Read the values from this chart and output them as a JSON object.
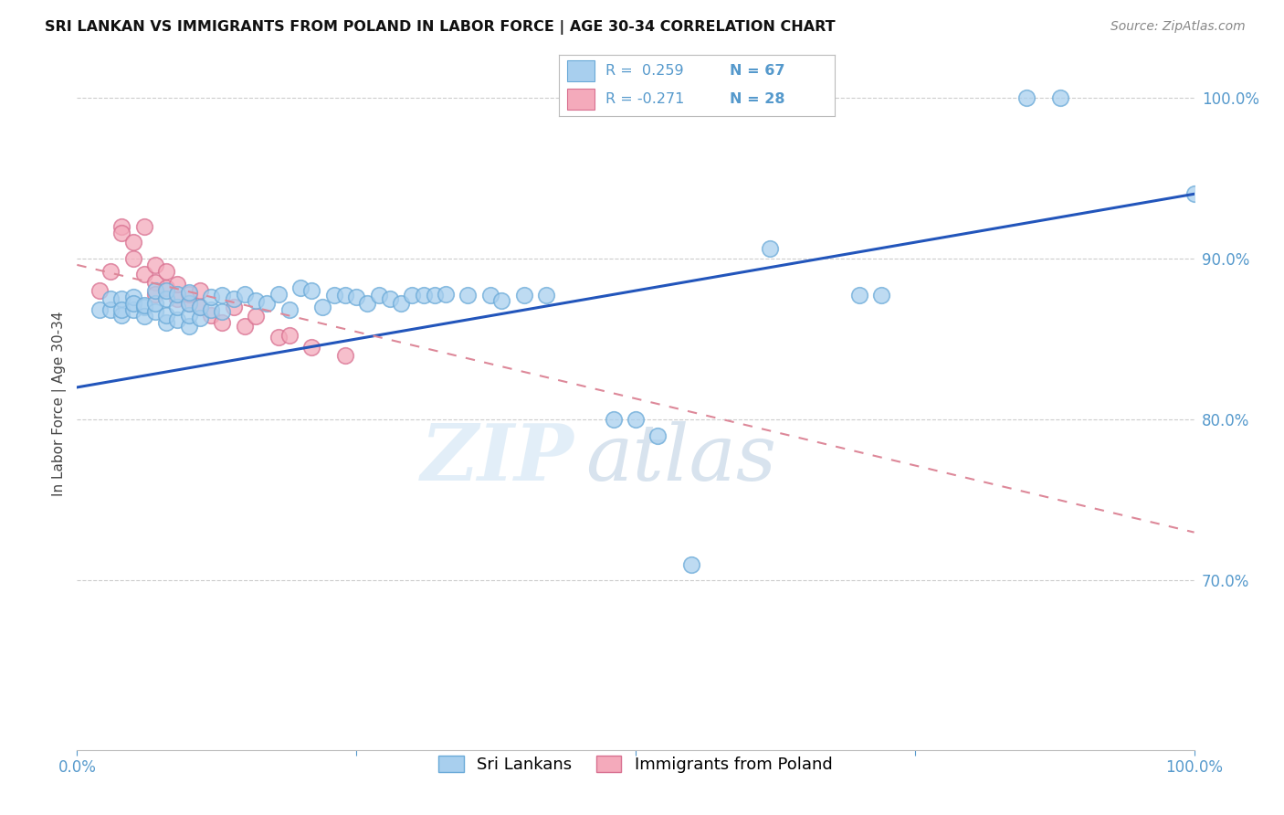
{
  "title": "SRI LANKAN VS IMMIGRANTS FROM POLAND IN LABOR FORCE | AGE 30-34 CORRELATION CHART",
  "source": "Source: ZipAtlas.com",
  "ylabel": "In Labor Force | Age 30-34",
  "watermark_zip": "ZIP",
  "watermark_atlas": "atlas",
  "x_min": 0.0,
  "x_max": 1.0,
  "y_min": 0.595,
  "y_max": 1.025,
  "y_tick_labels_right": [
    "100.0%",
    "90.0%",
    "80.0%",
    "70.0%"
  ],
  "y_tick_positions_right": [
    1.0,
    0.9,
    0.8,
    0.7
  ],
  "color_blue": "#A8CFEE",
  "color_blue_edge": "#6AAAD8",
  "color_pink": "#F4AABB",
  "color_pink_edge": "#D87090",
  "color_line_blue": "#2255BB",
  "color_line_pink": "#DD8899",
  "color_axis": "#5599CC",
  "color_grid": "#CCCCCC",
  "background": "#FFFFFF",
  "sri_x": [
    0.02,
    0.03,
    0.03,
    0.04,
    0.04,
    0.04,
    0.05,
    0.05,
    0.05,
    0.06,
    0.06,
    0.06,
    0.07,
    0.07,
    0.07,
    0.08,
    0.08,
    0.08,
    0.08,
    0.09,
    0.09,
    0.09,
    0.1,
    0.1,
    0.1,
    0.1,
    0.11,
    0.11,
    0.12,
    0.12,
    0.13,
    0.13,
    0.14,
    0.15,
    0.16,
    0.17,
    0.18,
    0.19,
    0.2,
    0.21,
    0.22,
    0.23,
    0.24,
    0.25,
    0.26,
    0.27,
    0.28,
    0.29,
    0.3,
    0.31,
    0.32,
    0.33,
    0.35,
    0.37,
    0.38,
    0.4,
    0.42,
    0.48,
    0.5,
    0.52,
    0.55,
    0.62,
    0.7,
    0.72,
    0.85,
    0.88,
    1.0
  ],
  "sri_y": [
    0.868,
    0.868,
    0.875,
    0.865,
    0.875,
    0.868,
    0.868,
    0.876,
    0.872,
    0.87,
    0.864,
    0.871,
    0.867,
    0.872,
    0.88,
    0.86,
    0.865,
    0.875,
    0.88,
    0.862,
    0.87,
    0.878,
    0.858,
    0.865,
    0.872,
    0.879,
    0.863,
    0.87,
    0.868,
    0.876,
    0.867,
    0.877,
    0.875,
    0.878,
    0.874,
    0.872,
    0.878,
    0.868,
    0.882,
    0.88,
    0.87,
    0.877,
    0.877,
    0.876,
    0.872,
    0.877,
    0.875,
    0.872,
    0.877,
    0.877,
    0.877,
    0.878,
    0.877,
    0.877,
    0.874,
    0.877,
    0.877,
    0.8,
    0.8,
    0.79,
    0.71,
    0.906,
    0.877,
    0.877,
    1.0,
    1.0,
    0.94
  ],
  "pol_x": [
    0.02,
    0.03,
    0.04,
    0.04,
    0.05,
    0.05,
    0.06,
    0.06,
    0.07,
    0.07,
    0.07,
    0.08,
    0.08,
    0.09,
    0.09,
    0.1,
    0.1,
    0.11,
    0.11,
    0.12,
    0.13,
    0.14,
    0.15,
    0.16,
    0.18,
    0.19,
    0.21,
    0.24
  ],
  "pol_y": [
    0.88,
    0.892,
    0.92,
    0.916,
    0.9,
    0.91,
    0.89,
    0.92,
    0.885,
    0.896,
    0.878,
    0.882,
    0.892,
    0.875,
    0.884,
    0.872,
    0.878,
    0.87,
    0.88,
    0.865,
    0.86,
    0.87,
    0.858,
    0.864,
    0.851,
    0.852,
    0.845,
    0.84
  ],
  "line_blue_x0": 0.0,
  "line_blue_x1": 1.0,
  "line_blue_y0": 0.82,
  "line_blue_y1": 0.94,
  "line_pink_x0": 0.0,
  "line_pink_x1": 1.0,
  "line_pink_y0": 0.896,
  "line_pink_y1": 0.73,
  "legend_r1": "R =  0.259",
  "legend_n1": "N = 67",
  "legend_r2": "R = -0.271",
  "legend_n2": "N = 28"
}
